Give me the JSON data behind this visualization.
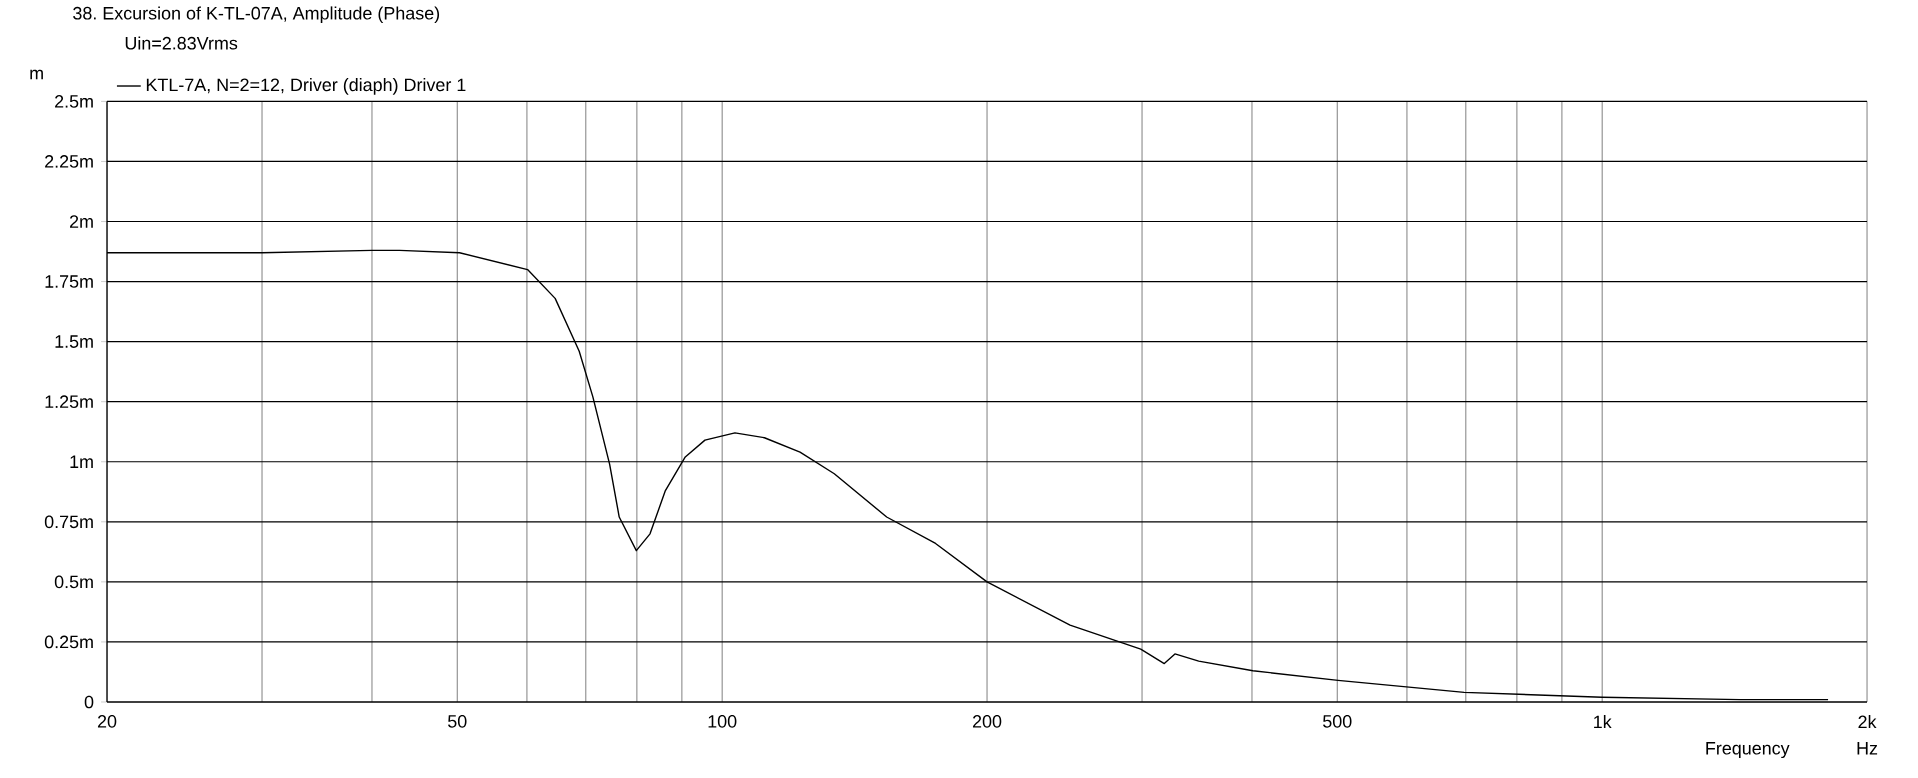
{
  "chart_data": {
    "type": "line",
    "title": "38. Excursion of K-TL-07A, Amplitude (Phase)",
    "subtitle": "Uin=2.83Vrms",
    "ylabel": "m",
    "xlabel": "Frequency",
    "annotations": [
      "Hz"
    ],
    "log": "x",
    "grid": true,
    "legend": "top left",
    "xlim": [
      20,
      2000
    ],
    "ylim": [
      0,
      2.5
    ],
    "xticks": [
      20,
      {
        "value": 30,
        "label": null
      },
      {
        "value": 40,
        "label": null
      },
      50,
      {
        "value": 60,
        "label": null
      },
      {
        "value": 70,
        "label": null
      },
      {
        "value": 80,
        "label": null
      },
      {
        "value": 90,
        "label": null
      },
      100,
      200,
      {
        "value": 300,
        "label": null
      },
      {
        "value": 400,
        "label": null
      },
      500,
      {
        "value": 600,
        "label": null
      },
      {
        "value": 700,
        "label": null
      },
      {
        "value": 800,
        "label": null
      },
      {
        "value": 900,
        "label": null
      },
      {
        "value": 1000,
        "label": "1k"
      },
      {
        "value": 2000,
        "label": "2k"
      }
    ],
    "yticks": [
      0,
      {
        "value": 0.25,
        "label": "0.25m"
      },
      {
        "value": 0.5,
        "label": "0.5m"
      },
      {
        "value": 0.75,
        "label": "0.75m"
      },
      {
        "value": 1,
        "label": "1m"
      },
      {
        "value": 1.25,
        "label": "1.25m"
      },
      {
        "value": 1.5,
        "label": "1.5m"
      },
      {
        "value": 1.75,
        "label": "1.75m"
      },
      {
        "value": 2,
        "label": "2m"
      },
      {
        "value": 2.25,
        "label": "2.25m"
      },
      {
        "value": 2.5,
        "label": "2.5m"
      }
    ],
    "series": [
      {
        "name": "KTL-7A, N=2=12, Driver (diaph) Driver 1",
        "color": "#000000",
        "x": [
          20,
          30,
          40,
          43,
          50.3,
          60.1,
          64.6,
          68.8,
          71.3,
          74.5,
          76.4,
          79.9,
          82.8,
          86.2,
          90.8,
          95.6,
          103.4,
          111.7,
          122.6,
          134.1,
          153.8,
          174.8,
          200,
          248.5,
          299,
          318,
          327,
          348,
          401,
          501,
          697,
          1000,
          1435,
          1806
        ],
        "values": [
          1.87,
          1.87,
          1.88,
          1.88,
          1.87,
          1.8,
          1.68,
          1.46,
          1.27,
          0.99,
          0.77,
          0.63,
          0.7,
          0.88,
          1.02,
          1.09,
          1.12,
          1.1,
          1.04,
          0.95,
          0.77,
          0.66,
          0.5,
          0.32,
          0.22,
          0.16,
          0.2,
          0.17,
          0.13,
          0.09,
          0.04,
          0.02,
          0.01,
          0.01
        ]
      }
    ]
  }
}
